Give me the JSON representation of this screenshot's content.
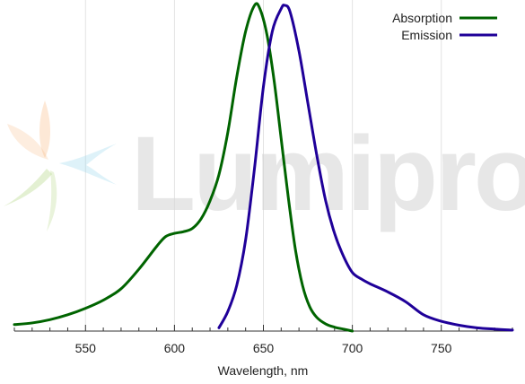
{
  "watermark": {
    "text": "Lumiprobe"
  },
  "chart_data": {
    "type": "line",
    "title": "",
    "xlabel": "Wavelength, nm",
    "ylabel": "",
    "xlim": [
      510,
      790
    ],
    "ylim": [
      0,
      1.0
    ],
    "x_ticks": [
      550,
      600,
      650,
      700,
      750
    ],
    "grid": "vertical",
    "legend_position": "top-right",
    "series": [
      {
        "name": "Absorption",
        "color": "#006400",
        "points": [
          [
            510,
            0.02
          ],
          [
            520,
            0.025
          ],
          [
            530,
            0.035
          ],
          [
            540,
            0.05
          ],
          [
            550,
            0.07
          ],
          [
            560,
            0.095
          ],
          [
            570,
            0.13
          ],
          [
            580,
            0.19
          ],
          [
            590,
            0.26
          ],
          [
            595,
            0.29
          ],
          [
            600,
            0.3
          ],
          [
            605,
            0.305
          ],
          [
            610,
            0.315
          ],
          [
            615,
            0.345
          ],
          [
            620,
            0.4
          ],
          [
            625,
            0.48
          ],
          [
            630,
            0.61
          ],
          [
            635,
            0.78
          ],
          [
            640,
            0.92
          ],
          [
            645,
            1.0
          ],
          [
            648,
            0.99
          ],
          [
            652,
            0.91
          ],
          [
            656,
            0.77
          ],
          [
            660,
            0.59
          ],
          [
            664,
            0.41
          ],
          [
            668,
            0.25
          ],
          [
            672,
            0.14
          ],
          [
            676,
            0.075
          ],
          [
            680,
            0.042
          ],
          [
            685,
            0.022
          ],
          [
            690,
            0.012
          ],
          [
            695,
            0.006
          ],
          [
            700,
            0.0
          ]
        ]
      },
      {
        "name": "Emission",
        "color": "#1f0099",
        "points": [
          [
            625,
            0.01
          ],
          [
            630,
            0.06
          ],
          [
            635,
            0.14
          ],
          [
            640,
            0.28
          ],
          [
            645,
            0.5
          ],
          [
            650,
            0.75
          ],
          [
            655,
            0.92
          ],
          [
            660,
            0.99
          ],
          [
            662,
            1.0
          ],
          [
            665,
            0.98
          ],
          [
            670,
            0.86
          ],
          [
            675,
            0.7
          ],
          [
            680,
            0.54
          ],
          [
            685,
            0.4
          ],
          [
            690,
            0.3
          ],
          [
            695,
            0.23
          ],
          [
            700,
            0.18
          ],
          [
            705,
            0.16
          ],
          [
            710,
            0.145
          ],
          [
            720,
            0.12
          ],
          [
            730,
            0.09
          ],
          [
            740,
            0.05
          ],
          [
            750,
            0.03
          ],
          [
            760,
            0.018
          ],
          [
            770,
            0.01
          ],
          [
            780,
            0.006
          ],
          [
            790,
            0.003
          ]
        ]
      }
    ]
  }
}
